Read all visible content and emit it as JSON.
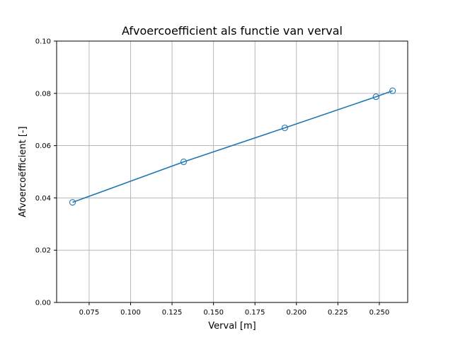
{
  "chart_data": {
    "type": "line",
    "title": "Afvoercoefficient als functie van verval",
    "xlabel": "Verval [m]",
    "ylabel": "Afvoercoëfficient [-]",
    "xlim": [
      0.0554,
      0.2671
    ],
    "ylim": [
      0.0,
      0.1
    ],
    "xticks": [
      0.075,
      0.1,
      0.125,
      0.15,
      0.175,
      0.2,
      0.225,
      0.25
    ],
    "xtick_labels": [
      "0.075",
      "0.100",
      "0.125",
      "0.150",
      "0.175",
      "0.200",
      "0.225",
      "0.250"
    ],
    "yticks": [
      0.0,
      0.02,
      0.04,
      0.06,
      0.08,
      0.1
    ],
    "ytick_labels": [
      "0.00",
      "0.02",
      "0.04",
      "0.06",
      "0.08",
      "0.10"
    ],
    "grid": true,
    "series": [
      {
        "x": [
          0.065,
          0.132,
          0.193,
          0.248,
          0.258
        ],
        "y": [
          0.0383,
          0.0538,
          0.0668,
          0.0787,
          0.081
        ],
        "color": "#1f77b4",
        "marker": "open-circle",
        "line": true
      }
    ]
  }
}
